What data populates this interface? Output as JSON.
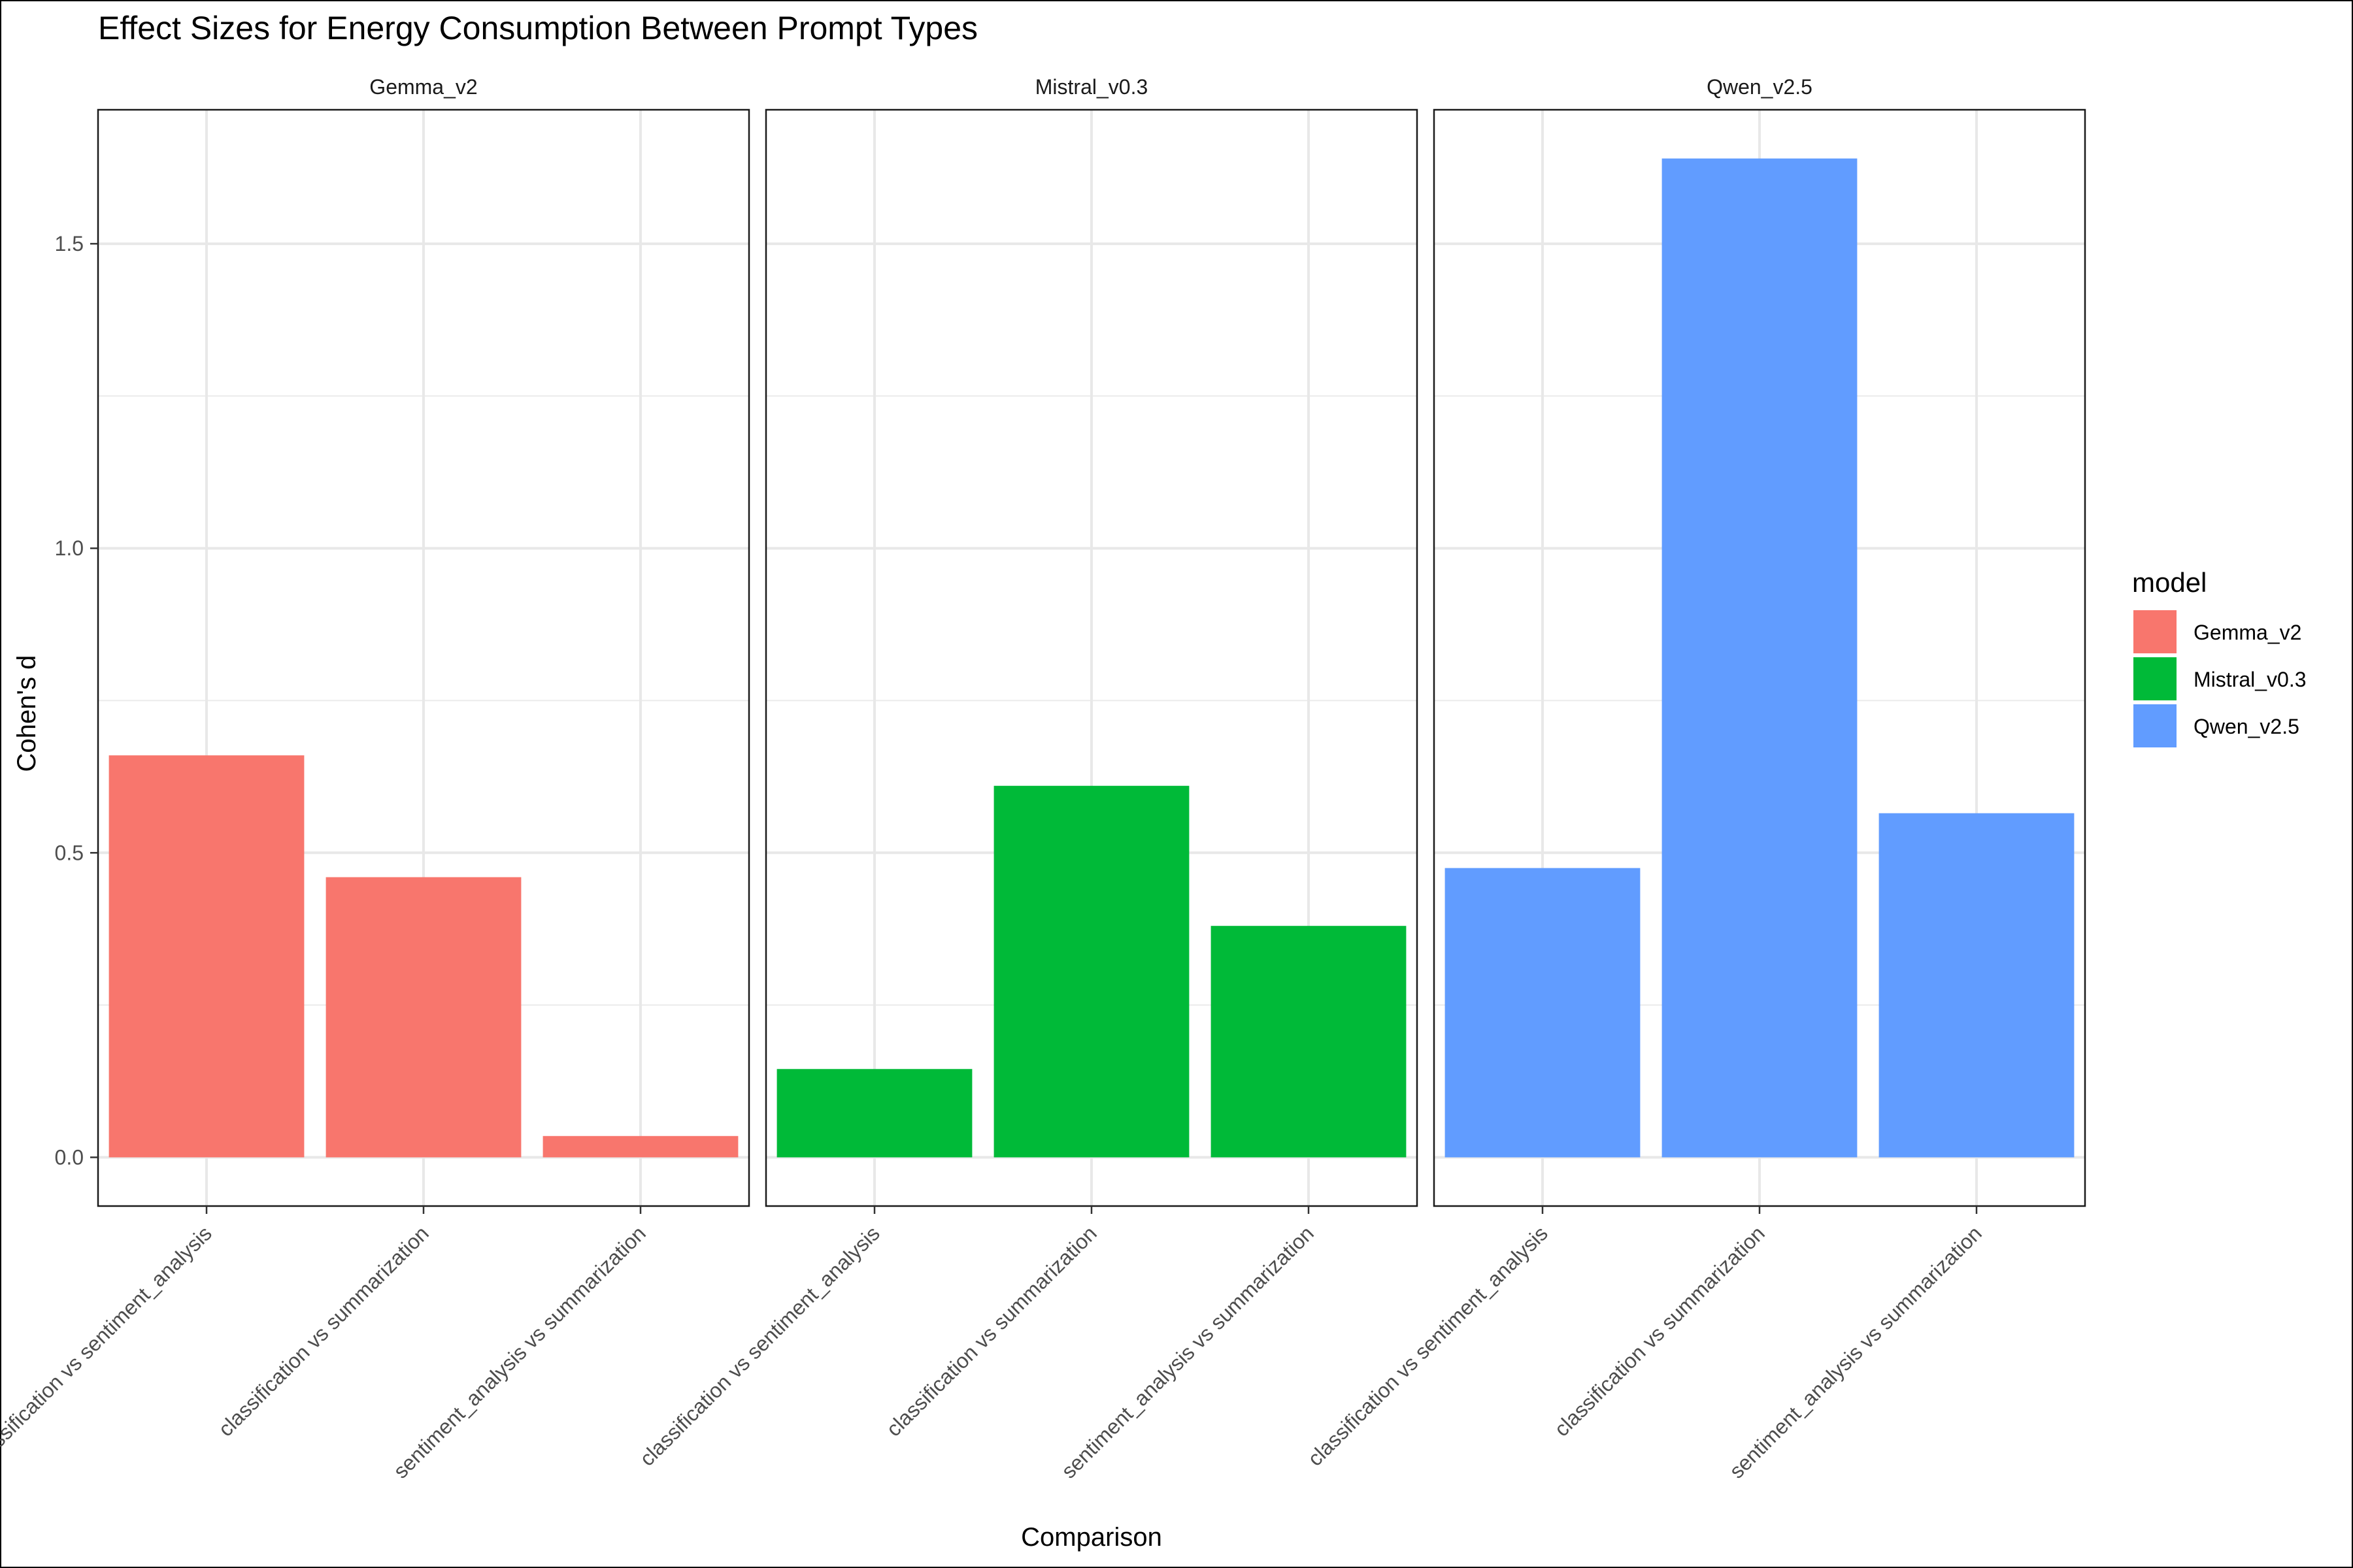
{
  "chart_data": {
    "type": "bar",
    "title": "Effect Sizes for Energy Consumption Between Prompt Types",
    "xlabel": "Comparison",
    "ylabel": "Cohen's d",
    "ylim": [
      -0.08,
      1.72
    ],
    "yticks": [
      0.0,
      0.5,
      1.0,
      1.5
    ],
    "ytick_labels": [
      "0.0",
      "0.5",
      "1.0",
      "1.5"
    ],
    "grid": true,
    "legend": {
      "title": "model",
      "placement": "right",
      "entries": [
        "Gemma_v2",
        "Mistral_v0.3",
        "Qwen_v2.5"
      ]
    },
    "categories": [
      "classification vs sentiment_analysis",
      "classification vs summarization",
      "sentiment_analysis vs summarization"
    ],
    "series": [
      {
        "name": "Gemma_v2",
        "color": "#F8766D",
        "values": [
          0.66,
          0.46,
          0.035
        ]
      },
      {
        "name": "Mistral_v0.3",
        "color": "#00BA38",
        "values": [
          0.145,
          0.61,
          0.38
        ]
      },
      {
        "name": "Qwen_v2.5",
        "color": "#619CFF",
        "values": [
          0.475,
          1.64,
          0.565
        ]
      }
    ]
  }
}
